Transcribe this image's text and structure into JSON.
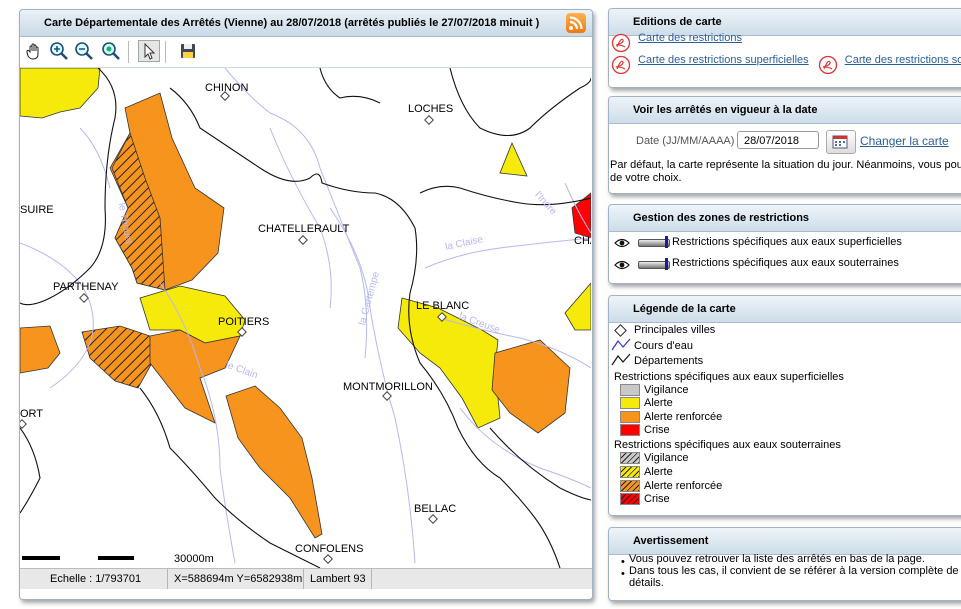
{
  "map": {
    "title": "Carte Départementale des Arrêtés (Vienne) au 28/07/2018 (arrêtés publiés le 27/07/2018 minuit )",
    "tools": [
      "pan-hand-icon",
      "zoom-in-icon",
      "zoom-out-icon",
      "zoom-extent-icon",
      "select-arrow-icon",
      "save-icon"
    ],
    "cities": {
      "chinon": "CHINON",
      "loches": "LOCHES",
      "suire": "SUIRE",
      "chatellerault": "CHATELLERAULT",
      "cha": "CHA",
      "parthenay": "PARTHENAY",
      "poitiers": "POITIERS",
      "leblanc": "LE BLANC",
      "montmorillon": "MONTMORILLON",
      "ort": "ORT",
      "bellac": "BELLAC",
      "confolens": "CONFOLENS"
    },
    "rivers": {
      "claise": "la Claise",
      "indre": "l'Indre",
      "gartempe": "la Gartempe",
      "clain": "le Clain",
      "creuse": "la Creuse",
      "thouet": "le Thouet"
    },
    "scale_label": "30000m",
    "status": {
      "scale": "Echelle : 1/793701",
      "coords": "X=588694m Y=6582938m",
      "projection": "Lambert 93"
    }
  },
  "editions": {
    "title": "Editions de carte",
    "links": [
      "Carte des restrictions",
      "Carte des restrictions superficielles",
      "Carte des restrictions souterraines"
    ]
  },
  "date_panel": {
    "title": "Voir les arrêtés en vigueur à la date",
    "date_label": "Date (JJ/MM/AAAA) :",
    "date_value": "28/07/2018",
    "change_link": "Changer la carte",
    "note_line1": "Par défaut, la carte représente la situation du jour. Néanmoins, vous pouvez",
    "note_line2": "de votre choix."
  },
  "zones": {
    "title": "Gestion des zones de restrictions",
    "rows": [
      "Restrictions spécifiques aux eaux superficielles",
      "Restrictions spécifiques aux eaux souterraines"
    ]
  },
  "legend": {
    "title": "Légende de la carte",
    "basemap": [
      "Principales villes",
      "Cours d'eau",
      "Départements"
    ],
    "surface_title": "Restrictions spécifiques aux eaux superficielles",
    "ground_title": "Restrictions spécifiques aux eaux souterraines",
    "levels": [
      "Vigilance",
      "Alerte",
      "Alerte renforcée",
      "Crise"
    ],
    "colors": {
      "vigilance": "#c8c8c8",
      "alerte": "#f5ea0a",
      "renforcee": "#f7941d",
      "crise": "#ff0000"
    }
  },
  "warning": {
    "title": "Avertissement",
    "items": [
      "Vous pouvez retrouver la liste des arrêtés en bas de la page.",
      "Dans tous les cas, il convient de se référer à la version complète de l'arrêté",
      "détails."
    ]
  }
}
